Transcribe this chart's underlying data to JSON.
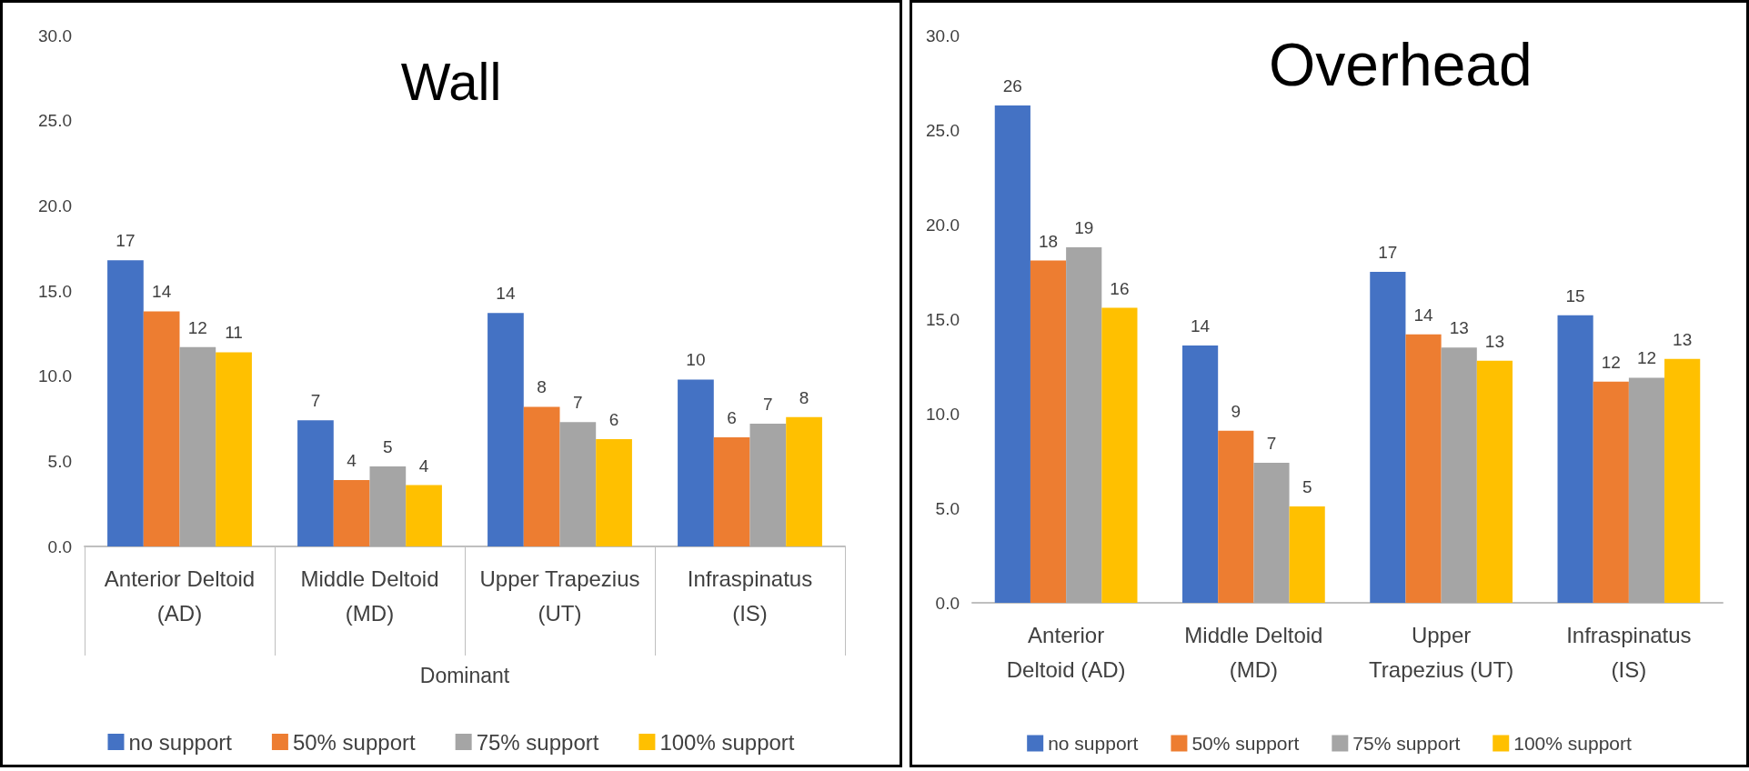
{
  "chart_data": [
    {
      "type": "bar",
      "title": "Wall",
      "xlabel": "Dominant",
      "categories": [
        "Anterior Deltoid\n(AD)",
        "Middle Deltoid\n(MD)",
        "Upper Trapezius\n(UT)",
        "Infraspinatus\n(IS)"
      ],
      "series": [
        {
          "name": "no support",
          "color": "#4472c4",
          "values": [
            16.8,
            7.4,
            13.7,
            9.8
          ],
          "value_labels": [
            "17",
            "7",
            "14",
            "10"
          ]
        },
        {
          "name": "50% support",
          "color": "#ed7d31",
          "values": [
            13.8,
            3.9,
            8.2,
            6.4
          ],
          "value_labels": [
            "14",
            "4",
            "8",
            "6"
          ]
        },
        {
          "name": "75% support",
          "color": "#a5a5a5",
          "values": [
            11.7,
            4.7,
            7.3,
            7.2
          ],
          "value_labels": [
            "12",
            "5",
            "7",
            "7"
          ]
        },
        {
          "name": "100% support",
          "color": "#ffc000",
          "values": [
            11.4,
            3.6,
            6.3,
            7.6
          ],
          "value_labels": [
            "11",
            "4",
            "6",
            "8"
          ]
        }
      ],
      "ylim": [
        0,
        30
      ],
      "yticks": [
        {
          "value": 0,
          "label": "0.0"
        },
        {
          "value": 5,
          "label": "5.0"
        },
        {
          "value": 10,
          "label": "10.0"
        },
        {
          "value": 15,
          "label": "15.0"
        },
        {
          "value": 20,
          "label": "20.0"
        },
        {
          "value": 25,
          "label": "25.0"
        },
        {
          "value": 30,
          "label": "30.0"
        }
      ],
      "grid": false,
      "legend": "bottom"
    },
    {
      "type": "bar",
      "title": "Overhead",
      "categories": [
        "Anterior\nDeltoid (AD)",
        "Middle Deltoid\n(MD)",
        "Upper\nTrapezius (UT)",
        "Infraspinatus\n(IS)"
      ],
      "series": [
        {
          "name": "no support",
          "color": "#4472c4",
          "values": [
            26.3,
            13.6,
            17.5,
            15.2
          ],
          "value_labels": [
            "26",
            "14",
            "17",
            "15"
          ]
        },
        {
          "name": "50% support",
          "color": "#ed7d31",
          "values": [
            18.1,
            9.1,
            14.2,
            11.7
          ],
          "value_labels": [
            "18",
            "9",
            "14",
            "12"
          ]
        },
        {
          "name": "75% support",
          "color": "#a5a5a5",
          "values": [
            18.8,
            7.4,
            13.5,
            11.9
          ],
          "value_labels": [
            "19",
            "7",
            "13",
            "12"
          ]
        },
        {
          "name": "100% support",
          "color": "#ffc000",
          "values": [
            15.6,
            5.1,
            12.8,
            12.9
          ],
          "value_labels": [
            "16",
            "5",
            "13",
            "13"
          ]
        }
      ],
      "ylim": [
        0,
        30
      ],
      "yticks": [
        {
          "value": 0,
          "label": "0.0"
        },
        {
          "value": 5,
          "label": "5.0"
        },
        {
          "value": 10,
          "label": "10.0"
        },
        {
          "value": 15,
          "label": "15.0"
        },
        {
          "value": 20,
          "label": "20.0"
        },
        {
          "value": 25,
          "label": "25.0"
        },
        {
          "value": 30,
          "label": "30.0"
        }
      ],
      "grid": false,
      "legend": "bottom"
    }
  ]
}
